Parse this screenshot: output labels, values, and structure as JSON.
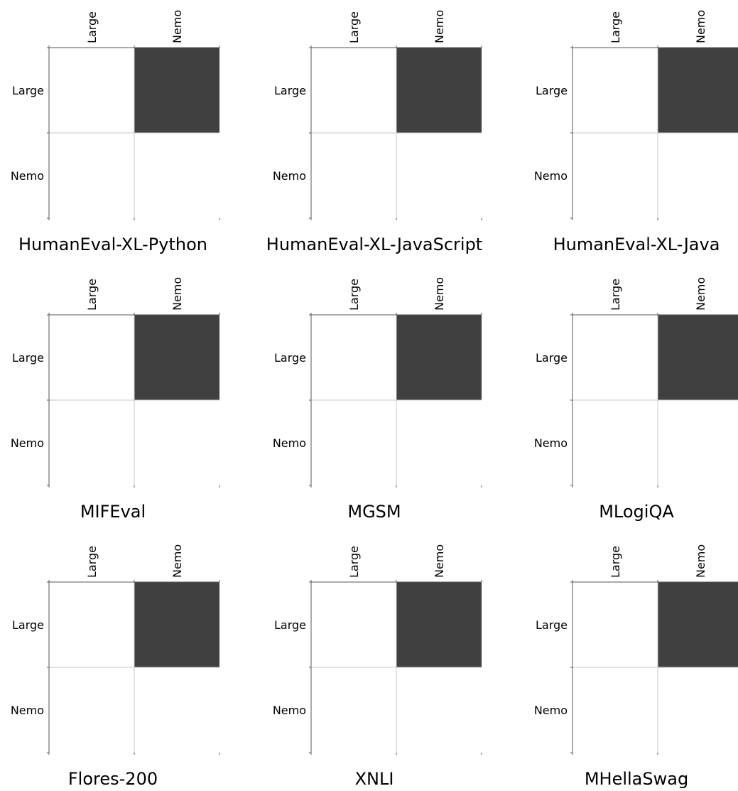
{
  "chart_data": [
    {
      "type": "heatmap",
      "title": "HumanEval-XL-Python",
      "x_categories": [
        "Large",
        "Nemo"
      ],
      "y_categories": [
        "Large",
        "Nemo"
      ],
      "values": [
        [
          0,
          1
        ],
        [
          0,
          0
        ]
      ]
    },
    {
      "type": "heatmap",
      "title": "HumanEval-XL-JavaScript",
      "x_categories": [
        "Large",
        "Nemo"
      ],
      "y_categories": [
        "Large",
        "Nemo"
      ],
      "values": [
        [
          0,
          1
        ],
        [
          0,
          0
        ]
      ]
    },
    {
      "type": "heatmap",
      "title": "HumanEval-XL-Java",
      "x_categories": [
        "Large",
        "Nemo"
      ],
      "y_categories": [
        "Large",
        "Nemo"
      ],
      "values": [
        [
          0,
          1
        ],
        [
          0,
          0
        ]
      ]
    },
    {
      "type": "heatmap",
      "title": "MIFEval",
      "x_categories": [
        "Large",
        "Nemo"
      ],
      "y_categories": [
        "Large",
        "Nemo"
      ],
      "values": [
        [
          0,
          1
        ],
        [
          0,
          0
        ]
      ]
    },
    {
      "type": "heatmap",
      "title": "MGSM",
      "x_categories": [
        "Large",
        "Nemo"
      ],
      "y_categories": [
        "Large",
        "Nemo"
      ],
      "values": [
        [
          0,
          1
        ],
        [
          0,
          0
        ]
      ]
    },
    {
      "type": "heatmap",
      "title": "MLogiQA",
      "x_categories": [
        "Large",
        "Nemo"
      ],
      "y_categories": [
        "Large",
        "Nemo"
      ],
      "values": [
        [
          0,
          1
        ],
        [
          0,
          0
        ]
      ]
    },
    {
      "type": "heatmap",
      "title": "Flores-200",
      "x_categories": [
        "Large",
        "Nemo"
      ],
      "y_categories": [
        "Large",
        "Nemo"
      ],
      "values": [
        [
          0,
          1
        ],
        [
          0,
          0
        ]
      ]
    },
    {
      "type": "heatmap",
      "title": "XNLI",
      "x_categories": [
        "Large",
        "Nemo"
      ],
      "y_categories": [
        "Large",
        "Nemo"
      ],
      "values": [
        [
          0,
          1
        ],
        [
          0,
          0
        ]
      ]
    },
    {
      "type": "heatmap",
      "title": "MHellaSwag",
      "x_categories": [
        "Large",
        "Nemo"
      ],
      "y_categories": [
        "Large",
        "Nemo"
      ],
      "values": [
        [
          0,
          1
        ],
        [
          0,
          0
        ]
      ]
    }
  ],
  "colors": {
    "filled": "#404040",
    "empty": "#ffffff",
    "grid": "#c8c8c8",
    "frame": "#555555",
    "text": "#000000"
  }
}
